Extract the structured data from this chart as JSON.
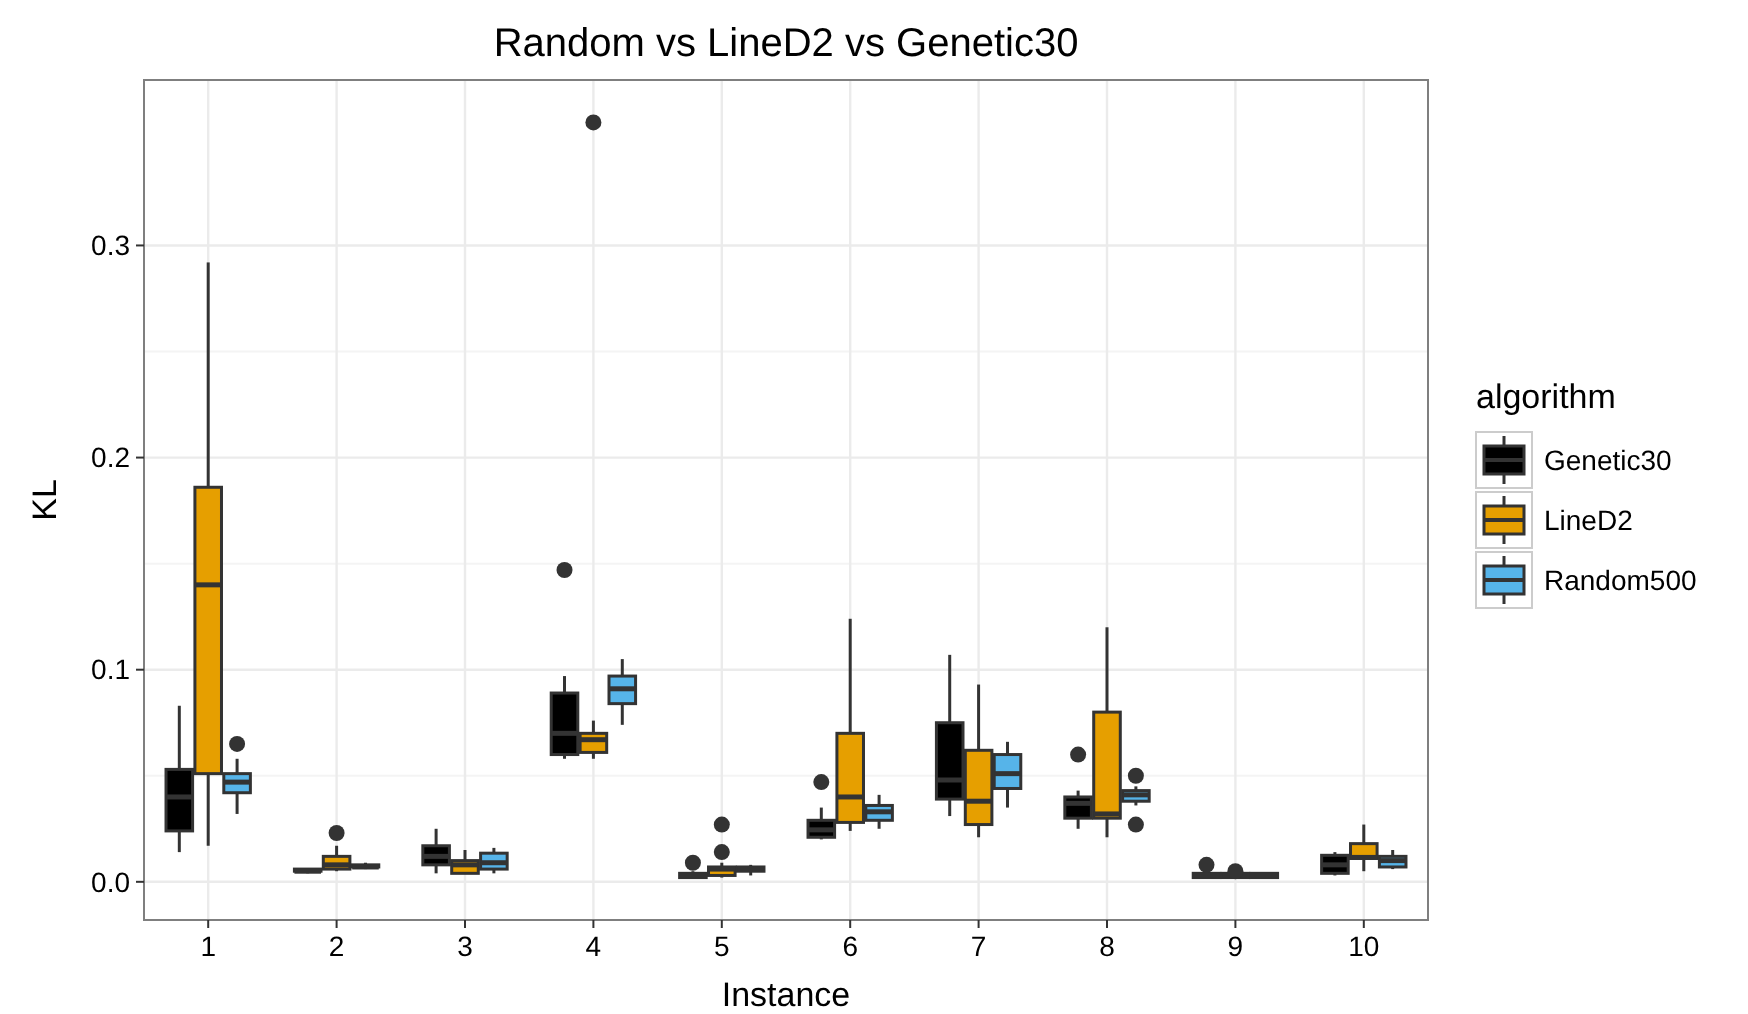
{
  "chart_data": {
    "type": "box",
    "title": "Random vs LineD2 vs Genetic30",
    "xlabel": "Instance",
    "ylabel": "KL",
    "legend_title": "algorithm",
    "legend": "right",
    "grid": true,
    "categories": [
      "1",
      "2",
      "3",
      "4",
      "5",
      "6",
      "7",
      "8",
      "9",
      "10"
    ],
    "ylim": [
      -0.018,
      0.378
    ],
    "yticks": [
      {
        "value": 0,
        "label": "0.0"
      },
      0.1,
      0.2,
      0.3
    ],
    "series": [
      {
        "name": "Genetic30",
        "color": "#000000",
        "boxes": [
          {
            "low": 0.014,
            "q1": 0.024,
            "median": 0.04,
            "q3": 0.053,
            "high": 0.083
          },
          {
            "low": 0.004,
            "q1": 0.005,
            "median": 0.005,
            "q3": 0.006,
            "high": 0.006
          },
          {
            "low": 0.004,
            "q1": 0.008,
            "median": 0.012,
            "q3": 0.017,
            "high": 0.025
          },
          {
            "low": 0.058,
            "q1": 0.06,
            "median": 0.07,
            "q3": 0.089,
            "high": 0.097,
            "outliers": [
              0.147
            ]
          },
          {
            "low": 0.002,
            "q1": 0.002,
            "median": 0.003,
            "q3": 0.004,
            "high": 0.005,
            "outliers": [
              0.009
            ]
          },
          {
            "low": 0.02,
            "q1": 0.021,
            "median": 0.0245,
            "q3": 0.029,
            "high": 0.035,
            "outliers": [
              0.047
            ]
          },
          {
            "low": 0.031,
            "q1": 0.039,
            "median": 0.048,
            "q3": 0.075,
            "high": 0.107
          },
          {
            "low": 0.025,
            "q1": 0.03,
            "median": 0.037,
            "q3": 0.04,
            "high": 0.043,
            "outliers": [
              0.06
            ]
          },
          {
            "low": 0.002,
            "q1": 0.002,
            "median": 0.003,
            "q3": 0.004,
            "high": 0.005,
            "outliers": [
              0.008
            ]
          },
          {
            "low": 0.003,
            "q1": 0.004,
            "median": 0.008,
            "q3": 0.0125,
            "high": 0.014
          }
        ]
      },
      {
        "name": "LineD2",
        "color": "#e69f00",
        "boxes": [
          {
            "low": 0.017,
            "q1": 0.051,
            "median": 0.14,
            "q3": 0.186,
            "high": 0.292
          },
          {
            "low": 0.005,
            "q1": 0.006,
            "median": 0.008,
            "q3": 0.012,
            "high": 0.017,
            "outliers": [
              0.023
            ]
          },
          {
            "low": 0.004,
            "q1": 0.004,
            "median": 0.008,
            "q3": 0.01,
            "high": 0.015
          },
          {
            "low": 0.058,
            "q1": 0.061,
            "median": 0.067,
            "q3": 0.07,
            "high": 0.076,
            "outliers": [
              0.358
            ]
          },
          {
            "low": 0.002,
            "q1": 0.003,
            "median": 0.006,
            "q3": 0.007,
            "high": 0.009,
            "outliers": [
              0.014,
              0.027
            ]
          },
          {
            "low": 0.024,
            "q1": 0.028,
            "median": 0.04,
            "q3": 0.07,
            "high": 0.124
          },
          {
            "low": 0.021,
            "q1": 0.027,
            "median": 0.038,
            "q3": 0.062,
            "high": 0.093
          },
          {
            "low": 0.021,
            "q1": 0.03,
            "median": 0.032,
            "q3": 0.08,
            "high": 0.12
          },
          {
            "low": 0.002,
            "q1": 0.002,
            "median": 0.003,
            "q3": 0.004,
            "high": 0.004,
            "outliers": [
              0.005
            ]
          },
          {
            "low": 0.005,
            "q1": 0.011,
            "median": 0.0115,
            "q3": 0.018,
            "high": 0.027
          }
        ]
      },
      {
        "name": "Random500",
        "color": "#56b4e9",
        "boxes": [
          {
            "low": 0.032,
            "q1": 0.042,
            "median": 0.047,
            "q3": 0.051,
            "high": 0.058,
            "outliers": [
              0.065
            ]
          },
          {
            "low": 0.006,
            "q1": 0.007,
            "median": 0.007,
            "q3": 0.008,
            "high": 0.009
          },
          {
            "low": 0.004,
            "q1": 0.006,
            "median": 0.009,
            "q3": 0.0135,
            "high": 0.016
          },
          {
            "low": 0.074,
            "q1": 0.084,
            "median": 0.091,
            "q3": 0.097,
            "high": 0.105
          },
          {
            "low": 0.003,
            "q1": 0.005,
            "median": 0.006,
            "q3": 0.007,
            "high": 0.008
          },
          {
            "low": 0.025,
            "q1": 0.029,
            "median": 0.033,
            "q3": 0.036,
            "high": 0.041
          },
          {
            "low": 0.035,
            "q1": 0.044,
            "median": 0.051,
            "q3": 0.06,
            "high": 0.066
          },
          {
            "low": 0.036,
            "q1": 0.038,
            "median": 0.041,
            "q3": 0.043,
            "high": 0.045,
            "outliers": [
              0.027,
              0.05
            ]
          },
          {
            "low": 0.002,
            "q1": 0.002,
            "median": 0.003,
            "q3": 0.004,
            "high": 0.004
          },
          {
            "low": 0.006,
            "q1": 0.007,
            "median": 0.01,
            "q3": 0.012,
            "high": 0.015
          }
        ]
      }
    ]
  }
}
